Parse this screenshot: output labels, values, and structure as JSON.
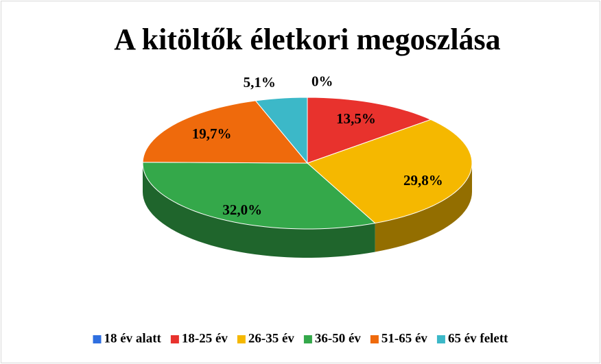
{
  "chart_data": {
    "type": "pie",
    "title": "A kitöltők életkori megoszlása",
    "categories": [
      "18 év alatt",
      "18-25 év",
      "26-35 év",
      "36-50 év",
      "51-65 év",
      "65 év felett"
    ],
    "values": [
      0,
      13.5,
      29.8,
      32.0,
      19.7,
      5.1
    ],
    "value_labels": [
      "0%",
      "13,5%",
      "29,8%",
      "32,0%",
      "19,7%",
      "5,1%"
    ],
    "colors": [
      "#2f6fe0",
      "#e8322d",
      "#f5b800",
      "#34a84a",
      "#ef6a0c",
      "#3cb8c8"
    ],
    "legend": "bottom"
  }
}
